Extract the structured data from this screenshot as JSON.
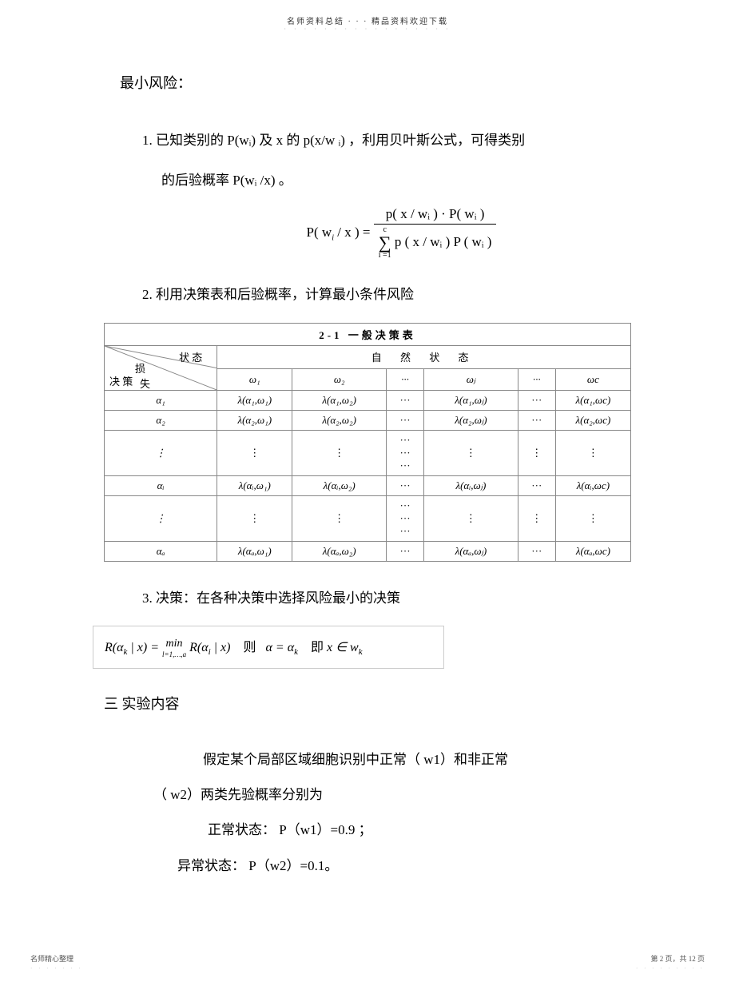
{
  "header": {
    "text": "名师资料总结 · · · 精品资料欢迎下载",
    "dots": "· · · · · · · · · · · · · · · · ·"
  },
  "title_min_risk": "最小风险：",
  "item1_a": "1.  已知类别的  P(wᵢ) 及 x 的 p(x/w ᵢ)  ，利用贝叶斯公式，可得类别",
  "item1_b": "的后验概率  P(wᵢ /x)  。",
  "formula1": {
    "lhs": "P( w",
    "lhs2": " / x ) = ",
    "num": "p( x / wᵢ )  · P( wᵢ )",
    "den_sum_top": "c",
    "den_sum_bot": "i =1",
    "den_rest": " p ( x / wᵢ ) P ( wᵢ )"
  },
  "item2": "2.  利用决策表和后验概率，计算最小条件风险",
  "table": {
    "caption": "2-1  一般决策表",
    "diag": {
      "top_right": "状 态",
      "mid_left": "损",
      "mid_left2": "失",
      "bottom_left": "决  策"
    },
    "nat_state": "自    然    状    态",
    "cols": [
      "ω₁",
      "ω₂",
      "···",
      "ωⱼ",
      "···",
      "ωc"
    ],
    "rows": [
      {
        "h": "α₁",
        "cells": [
          "λ(α₁,ω₁)",
          "λ(α₁,ω₂)",
          "···",
          "λ(α₁,ωⱼ)",
          "···",
          "λ(α₁,ωc)"
        ]
      },
      {
        "h": "α₂",
        "cells": [
          "λ(α₂,ω₁)",
          "λ(α₂,ω₂)",
          "···",
          "λ(α₂,ωⱼ)",
          "···",
          "λ(α₂,ωc)"
        ]
      },
      {
        "h": "⋮",
        "cells": [
          "⋮",
          "⋮",
          "···\n···\n···",
          "⋮",
          "⋮",
          "⋮"
        ],
        "triple": true
      },
      {
        "h": "αᵢ",
        "cells": [
          "λ(αᵢ,ω₁)",
          "λ(αᵢ,ω₂)",
          "···",
          "λ(αᵢ,ωⱼ)",
          "···",
          "λ(αᵢ,ωc)"
        ]
      },
      {
        "h": "⋮",
        "cells": [
          "⋮",
          "⋮",
          "···\n···\n···",
          "⋮",
          "⋮",
          "⋮"
        ],
        "triple": true
      },
      {
        "h": "αₐ",
        "cells": [
          "λ(αₐ,ω₁)",
          "λ(αₐ,ω₂)",
          "···",
          "λ(αₐ,ωⱼ)",
          "···",
          "λ(αₐ,ωc)"
        ]
      }
    ]
  },
  "item3": "3.  决策：在各种决策中选择风险最小的决策",
  "formula2_html": "R(α<sub>k</sub> | x) = <span style='display:inline-block;vertical-align:middle;text-align:center;font-size:14px;'><span style='display:block;'>min</span><span style='display:block;font-size:9px;'>l=1,…,a</span></span> R(α<sub>i</sub> | x)&nbsp;&nbsp;&nbsp;&nbsp;<span class='upright'>则</span>&nbsp;&nbsp;&nbsp;α = α<sub>k</sub>&nbsp;&nbsp;&nbsp;&nbsp;<span class='upright'>即</span> x ∈ w<sub>k</sub>",
  "section3": "三  实验内容",
  "para1": "假定某个局部区域细胞识别中正常（    w1）和非正常",
  "para2": "（  w2）两类先验概率分别为",
  "para3": "正常状态： P（w1）=0.9 ；",
  "para4": "异常状态： P（w2）=0.1。",
  "footer": {
    "left": "名师精心整理",
    "left_dots": "· · · · · · ·",
    "right": "第 2 页，共 12 页",
    "right_dots": "· · · · · · · · ·"
  }
}
